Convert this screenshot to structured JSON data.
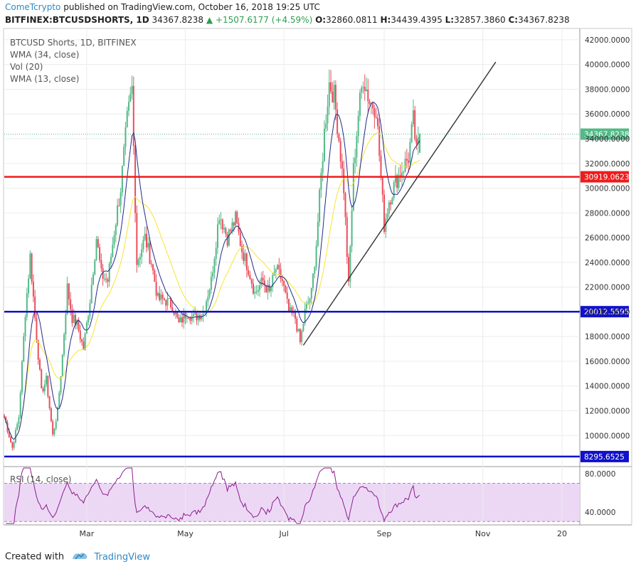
{
  "header": {
    "author": "ComeTcrypto",
    "published_text": "published on TradingView.com, October 16, 2018 19:25 UTC",
    "symbol": "BITFINEX:BTCUSDSHORTS, 1D",
    "last": "34367.8238",
    "change": "+1507.6177 (+4.59%)",
    "ohlc": {
      "o_label": "O:",
      "o": "32860.0811",
      "h_label": "H:",
      "h": "34439.4395",
      "l_label": "L:",
      "l": "32857.3860",
      "c_label": "C:",
      "c": "34367.8238"
    }
  },
  "legend": {
    "items": [
      "BTCUSD Shorts, 1D, BITFINEX",
      "WMA (34, close)",
      "Vol (20)",
      "WMA (13, close)"
    ],
    "rsi_label": "RSI (14, close)"
  },
  "footer": {
    "created_with": "Created with",
    "brand": "TradingView"
  },
  "colors": {
    "up": "#53b987",
    "down": "#eb4d5c",
    "wma13": "#1f2a8a",
    "wma34": "#f7e531",
    "resistance": "#ee1c1c",
    "support": "#1111cc",
    "rsi_line": "#8b1e8b",
    "rsi_band": "#ecd8f5",
    "last_price": "#53b987"
  },
  "chart_data": [
    {
      "type": "candlestick",
      "title": "BTCUSD Shorts, 1D, BITFINEX",
      "ylim": [
        7600,
        42800
      ],
      "y_ticks": [
        "42000.0000",
        "40000.0000",
        "38000.0000",
        "36000.0000",
        "34000.0000",
        "32000.0000",
        "30000.0000",
        "28000.0000",
        "26000.0000",
        "24000.0000",
        "22000.0000",
        "20000.0000",
        "18000.0000",
        "16000.0000",
        "14000.0000",
        "12000.0000",
        "10000.0000"
      ],
      "x_ticks": [
        "Mar",
        "May",
        "Jul",
        "Sep",
        "Nov",
        "20"
      ],
      "x_tick_dates": [
        "2018-03-01",
        "2018-05-01",
        "2018-07-01",
        "2018-09-01",
        "2018-11-01",
        "2018-12-20"
      ],
      "date_range": [
        "2018-01-09",
        "2018-12-31"
      ],
      "anchor_closes": [
        [
          "2018-01-09",
          11500
        ],
        [
          "2018-01-14",
          9000
        ],
        [
          "2018-01-18",
          11500
        ],
        [
          "2018-01-22",
          20000
        ],
        [
          "2018-01-25",
          24500
        ],
        [
          "2018-01-28",
          19500
        ],
        [
          "2018-02-01",
          13500
        ],
        [
          "2018-02-04",
          14500
        ],
        [
          "2018-02-08",
          10000
        ],
        [
          "2018-02-11",
          12000
        ],
        [
          "2018-02-14",
          16500
        ],
        [
          "2018-02-17",
          22000
        ],
        [
          "2018-02-20",
          19500
        ],
        [
          "2018-02-23",
          19000
        ],
        [
          "2018-02-27",
          17000
        ],
        [
          "2018-03-03",
          21000
        ],
        [
          "2018-03-07",
          26000
        ],
        [
          "2018-03-10",
          23000
        ],
        [
          "2018-03-14",
          22500
        ],
        [
          "2018-03-18",
          26500
        ],
        [
          "2018-03-22",
          30000
        ],
        [
          "2018-03-26",
          35500
        ],
        [
          "2018-03-29",
          38000
        ],
        [
          "2018-04-01",
          24000
        ],
        [
          "2018-04-06",
          26000
        ],
        [
          "2018-04-10",
          24000
        ],
        [
          "2018-04-14",
          21000
        ],
        [
          "2018-04-18",
          21000
        ],
        [
          "2018-04-23",
          20500
        ],
        [
          "2018-04-27",
          19000
        ],
        [
          "2018-05-02",
          20000
        ],
        [
          "2018-05-06",
          19500
        ],
        [
          "2018-05-12",
          20000
        ],
        [
          "2018-05-17",
          22500
        ],
        [
          "2018-05-22",
          28000
        ],
        [
          "2018-05-27",
          26000
        ],
        [
          "2018-06-01",
          27500
        ],
        [
          "2018-06-05",
          25000
        ],
        [
          "2018-06-09",
          23500
        ],
        [
          "2018-06-13",
          21500
        ],
        [
          "2018-06-18",
          22500
        ],
        [
          "2018-06-22",
          21500
        ],
        [
          "2018-06-26",
          23500
        ],
        [
          "2018-06-30",
          22500
        ],
        [
          "2018-07-04",
          20000
        ],
        [
          "2018-07-08",
          19500
        ],
        [
          "2018-07-11",
          17500
        ],
        [
          "2018-07-14",
          20000
        ],
        [
          "2018-07-18",
          21500
        ],
        [
          "2018-07-21",
          25500
        ],
        [
          "2018-07-24",
          31000
        ],
        [
          "2018-07-26",
          34500
        ],
        [
          "2018-07-29",
          38500
        ],
        [
          "2018-08-01",
          37500
        ],
        [
          "2018-08-04",
          34000
        ],
        [
          "2018-08-07",
          30000
        ],
        [
          "2018-08-10",
          22000
        ],
        [
          "2018-08-13",
          31500
        ],
        [
          "2018-08-16",
          36000
        ],
        [
          "2018-08-19",
          39000
        ],
        [
          "2018-08-23",
          37000
        ],
        [
          "2018-08-27",
          36500
        ],
        [
          "2018-09-01",
          27000
        ],
        [
          "2018-09-04",
          29000
        ],
        [
          "2018-09-08",
          30500
        ],
        [
          "2018-09-12",
          31500
        ],
        [
          "2018-09-16",
          32500
        ],
        [
          "2018-09-19",
          35500
        ],
        [
          "2018-09-21",
          32860
        ],
        [
          "2018-09-23",
          34367.82
        ]
      ],
      "horizontal_lines": [
        {
          "value": 30919.0623,
          "label": "30919.0623",
          "color": "#ee1c1c"
        },
        {
          "value": 20012.5595,
          "label": "20012.5595",
          "color": "#1111cc"
        },
        {
          "value": 8295.6525,
          "label": "8295.6525",
          "color": "#1111cc"
        }
      ],
      "last_price": {
        "value": 34367.8238,
        "label": "34367.8238"
      },
      "trendline": {
        "from": [
          "2018-07-13",
          17300
        ],
        "to": [
          "2018-11-09",
          40200
        ]
      }
    },
    {
      "type": "line",
      "title": "RSI (14, close)",
      "ylim": [
        28,
        86
      ],
      "y_ticks": [
        "80.0000",
        "40.0000"
      ],
      "band": [
        30,
        70
      ]
    }
  ]
}
